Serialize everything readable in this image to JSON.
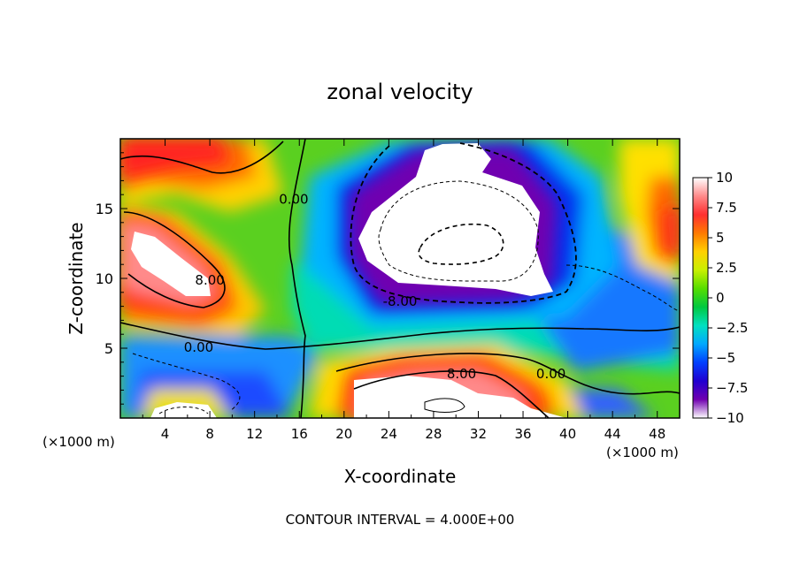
{
  "chart_data": {
    "type": "heatmap",
    "title": "zonal velocity",
    "xlabel": "X-coordinate",
    "ylabel": "Z-coordinate",
    "x_unit_label": "(×1000 m)",
    "z_unit_label": "(×1000 m)",
    "footer": "CONTOUR INTERVAL = 4.000E+00",
    "xlim": [
      0,
      50
    ],
    "zlim": [
      0,
      20
    ],
    "x_ticks": [
      "4",
      "8",
      "12",
      "16",
      "20",
      "24",
      "28",
      "32",
      "36",
      "40",
      "44",
      "48"
    ],
    "z_ticks": [
      "5",
      "10",
      "15"
    ],
    "colorbar": {
      "range": [
        -10,
        10
      ],
      "ticks": [
        "10",
        "7.5",
        "5",
        "2.5",
        "0",
        "−2.5",
        "−5",
        "−7.5",
        "−10"
      ],
      "colors": [
        "#ffffff",
        "#ff8a8a",
        "#ff3030",
        "#ff7a00",
        "#ffd000",
        "#c8f000",
        "#55dd00",
        "#00c840",
        "#00e0c0",
        "#00a8ff",
        "#0040ff",
        "#2000d0",
        "#7000b0",
        "#ffffff"
      ]
    },
    "contour_labels": [
      {
        "text": "0.00",
        "x": 15.5,
        "z": 15.6
      },
      {
        "text": "8.00",
        "x": 8.0,
        "z": 9.8
      },
      {
        "text": "-8.00",
        "x": 25.0,
        "z": 8.3
      },
      {
        "text": "0.00",
        "x": 7.0,
        "z": 5.0
      },
      {
        "text": "8.00",
        "x": 30.5,
        "z": 3.1
      },
      {
        "text": "0.00",
        "x": 38.5,
        "z": 3.1
      }
    ]
  }
}
